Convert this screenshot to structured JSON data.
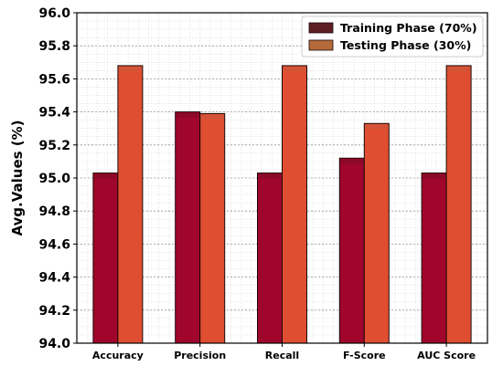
{
  "chart_data": {
    "type": "bar",
    "categories": [
      "Accuracy",
      "Precision",
      "Recall",
      "F-Score",
      "AUC Score"
    ],
    "series": [
      {
        "name": "Training Phase (70%)",
        "values": [
          95.03,
          95.4,
          95.03,
          95.12,
          95.03
        ],
        "color": "#a0062b"
      },
      {
        "name": "Testing Phase (30%)",
        "values": [
          95.68,
          95.39,
          95.68,
          95.33,
          95.68
        ],
        "color": "#e04e32"
      }
    ],
    "legend_colors": [
      "#5e1f24",
      "#b56a3a"
    ],
    "ylabel": "Avg.Values (%)",
    "xlabel": "",
    "ylim": [
      94.0,
      96.0
    ],
    "yticks": [
      "94.0",
      "94.2",
      "94.4",
      "94.6",
      "94.8",
      "95.0",
      "95.2",
      "95.4",
      "95.6",
      "95.8",
      "96.0"
    ],
    "grid": true,
    "legend_position": "top-right"
  }
}
